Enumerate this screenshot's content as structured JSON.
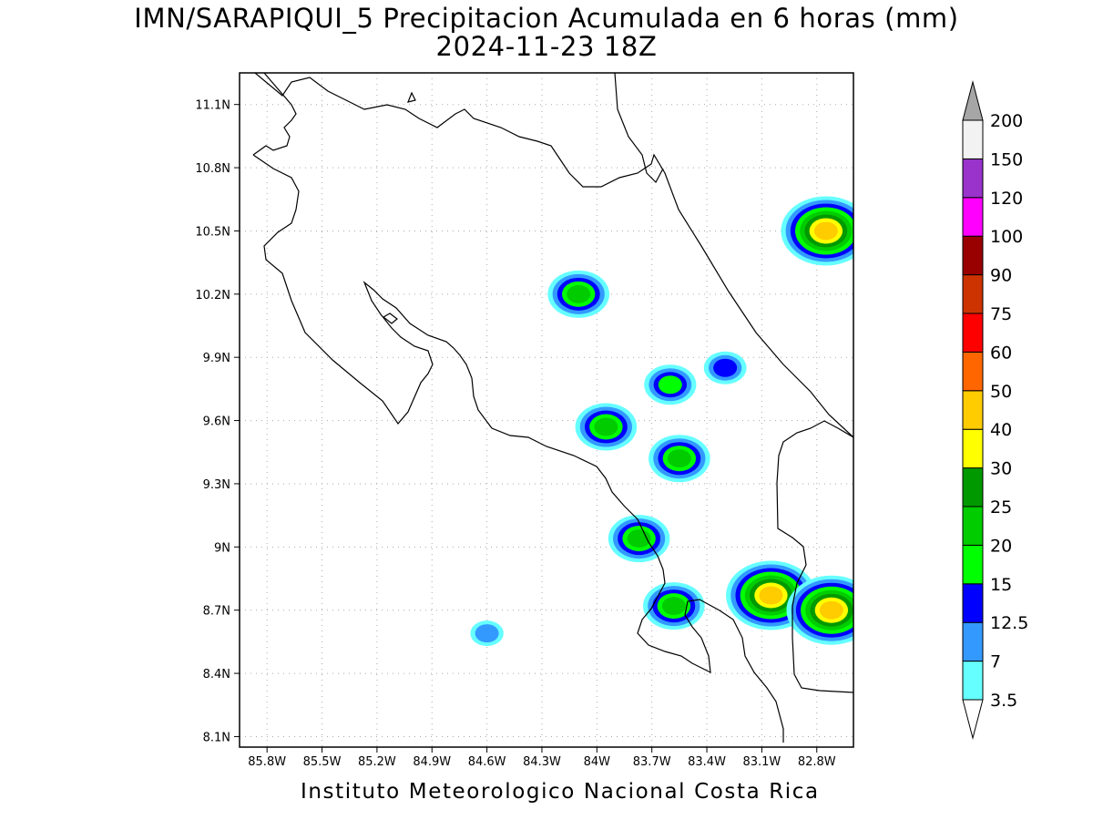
{
  "title": {
    "line1": "IMN/SARAPIQUI_5 Precipitacion Acumulada en 6 horas (mm)",
    "line2": "2024-11-23 18Z"
  },
  "footer": "Instituto Meteorologico Nacional Costa Rica",
  "map": {
    "lon_ticks": [
      "85.8W",
      "85.5W",
      "85.2W",
      "84.9W",
      "84.6W",
      "84.3W",
      "84W",
      "83.7W",
      "83.4W",
      "83.1W",
      "82.8W"
    ],
    "lat_ticks": [
      "11.1N",
      "10.8N",
      "10.5N",
      "10.2N",
      "9.9N",
      "9.6N",
      "9.3N",
      "9N",
      "8.7N",
      "8.4N",
      "8.1N"
    ]
  },
  "legend": {
    "colors": [
      "#66ffff",
      "#3399ff",
      "#0000ff",
      "#00ff00",
      "#00cc00",
      "#009900",
      "#ffff00",
      "#ffcc00",
      "#ff6600",
      "#ff0000",
      "#cc3300",
      "#990000",
      "#ff00ff",
      "#9933cc",
      "#f2f2f2"
    ],
    "under_color": "#ffffff",
    "over_color": "#a6a6a6",
    "labels": [
      "3.5",
      "7",
      "12.5",
      "15",
      "20",
      "25",
      "30",
      "40",
      "50",
      "60",
      "75",
      "90",
      "100",
      "120",
      "150",
      "200"
    ]
  },
  "chart_data": {
    "type": "heatmap",
    "title": "IMN/SARAPIQUI_5 Precipitacion Acumulada en 6 horas (mm)",
    "subtitle": "2024-11-23 18Z",
    "units": "mm",
    "levels": [
      3.5,
      7,
      12.5,
      15,
      20,
      25,
      30,
      40,
      50,
      60,
      75,
      90,
      100,
      120,
      150,
      200
    ],
    "x_range": [
      "85.95W",
      "82.6W"
    ],
    "y_range": [
      "8.05N",
      "11.25N"
    ],
    "grid": true,
    "legend_position": "right",
    "precipitation_cells": [
      {
        "lon": -84.1,
        "lat": 10.2,
        "max_mm": 20
      },
      {
        "lon": -83.6,
        "lat": 9.77,
        "max_mm": 15
      },
      {
        "lon": -83.3,
        "lat": 9.85,
        "max_mm": 12.5
      },
      {
        "lon": -83.95,
        "lat": 9.57,
        "max_mm": 20
      },
      {
        "lon": -83.55,
        "lat": 9.42,
        "max_mm": 20
      },
      {
        "lon": -83.77,
        "lat": 9.04,
        "max_mm": 20
      },
      {
        "lon": -83.58,
        "lat": 8.72,
        "max_mm": 20
      },
      {
        "lon": -84.6,
        "lat": 8.59,
        "max_mm": 7
      },
      {
        "lon": -83.05,
        "lat": 8.77,
        "max_mm": 40
      },
      {
        "lon": -82.72,
        "lat": 8.7,
        "max_mm": 40
      },
      {
        "lon": -82.75,
        "lat": 10.5,
        "max_mm": 40
      }
    ]
  }
}
